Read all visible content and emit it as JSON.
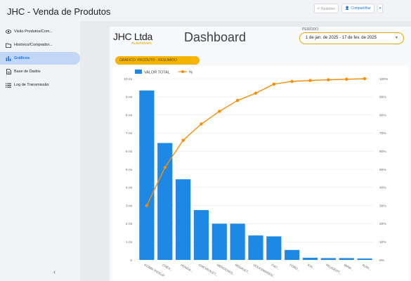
{
  "app": {
    "title": "JHC - Venda de Produtos"
  },
  "toolbar": {
    "redefine_label": "Redefinir",
    "share_label": "Compartilhar",
    "share_caret": "▾"
  },
  "sidebar": {
    "items": [
      {
        "label": "Visão Produtos/Com...",
        "icon": "visibility-icon"
      },
      {
        "label": "Histórico/Comprador...",
        "icon": "folder-icon"
      },
      {
        "label": "Gráficos",
        "icon": "bar-chart-icon",
        "active": true
      },
      {
        "label": "Base de Dados",
        "icon": "document-icon"
      },
      {
        "label": "Log de Transmissão",
        "icon": "list-icon"
      }
    ],
    "collapse": "‹"
  },
  "report": {
    "brand": "JHC Ltda",
    "brand_sub": "Automóveis",
    "title": "Dashboard",
    "period_label": "PERÍODO",
    "period_value": "1 de jan. de 2025 - 17 de fev. de 2025",
    "period_caret": "▼",
    "section": "GRÁFICO: PRODUTO - RESUMIDO"
  },
  "colors": {
    "bar": "#1e88e5",
    "line": "#fb8c00",
    "badge": "#f5b400",
    "accent": "#1a73e8"
  },
  "chart_data": {
    "type": "bar",
    "combo": "pareto",
    "legend_position": "top-left",
    "grid": true,
    "series": [
      {
        "name": "VALOR TOTAL",
        "axis": "left",
        "kind": "bar",
        "values": [
          9.35,
          6.45,
          4.45,
          2.75,
          2.0,
          2.0,
          1.35,
          1.3,
          0.55,
          0.12,
          0.1,
          0.1,
          0.08
        ]
      },
      {
        "name": "%",
        "axis": "right",
        "kind": "line",
        "values": [
          30,
          51,
          66,
          75,
          82,
          88,
          92,
          97,
          98.5,
          99,
          99.4,
          99.7,
          100
        ]
      }
    ],
    "categories": [
      "KOMBI PICKUP",
      "CHEV...",
      "HONDA...",
      "CHEVROLET...",
      "MERCEDES...",
      "RENAULT...",
      "VOLKSWAGEN...",
      "FIAT...",
      "FORD...",
      "KIA...",
      "PEUGEOT...",
      "BMW...",
      "AUDI..."
    ],
    "y_left": {
      "ticks": [
        "0",
        "1 mi",
        "2 mi",
        "3 mi",
        "4 mi",
        "5 mi",
        "6 mi",
        "7 mi",
        "8 mi",
        "9 mi",
        "10 mi"
      ],
      "min": 0,
      "max": 10
    },
    "y_right": {
      "ticks": [
        "0%",
        "10%",
        "20%",
        "30%",
        "40%",
        "50%",
        "60%",
        "70%",
        "80%",
        "90%",
        "100%"
      ],
      "min": 0,
      "max": 100
    }
  }
}
